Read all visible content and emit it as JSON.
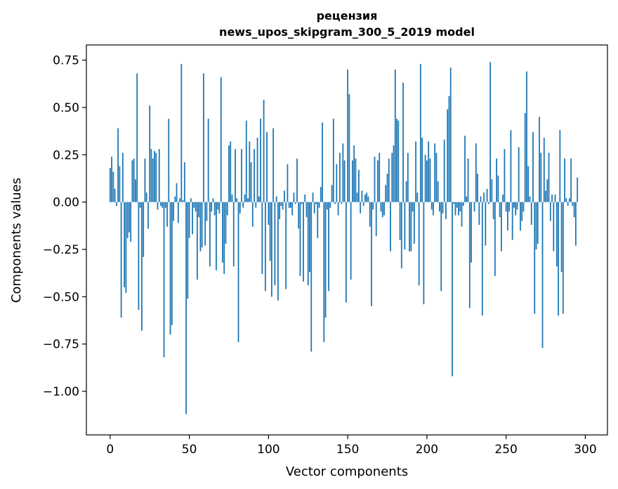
{
  "chart_data": {
    "type": "bar",
    "title": "рецензия",
    "subtitle": "news_upos_skipgram_300_5_2019 model",
    "xlabel": "Vector components",
    "ylabel": "Components values",
    "xlim": [
      -15,
      314
    ],
    "ylim": [
      -1.23,
      0.83
    ],
    "xticks": [
      0,
      50,
      100,
      150,
      200,
      250,
      300
    ],
    "xtick_labels": [
      "0",
      "50",
      "100",
      "150",
      "200",
      "250",
      "300"
    ],
    "yticks": [
      -1.0,
      -0.75,
      -0.5,
      -0.25,
      0.0,
      0.25,
      0.5,
      0.75
    ],
    "ytick_labels": [
      "−1.00",
      "−0.75",
      "−0.50",
      "−0.25",
      "0.00",
      "0.25",
      "0.50",
      "0.75"
    ],
    "grid": false,
    "bar_color": "#1f77b4",
    "values": [
      0.18,
      0.24,
      0.16,
      0.07,
      -0.02,
      0.39,
      0.19,
      -0.61,
      0.26,
      -0.45,
      -0.48,
      -0.19,
      -0.16,
      -0.21,
      0.22,
      0.23,
      0.12,
      0.68,
      -0.57,
      -0.03,
      -0.68,
      -0.29,
      0.23,
      0.05,
      -0.14,
      0.51,
      0.28,
      0.23,
      0.27,
      0.26,
      -0.04,
      0.28,
      -0.02,
      -0.03,
      -0.82,
      -0.03,
      -0.13,
      0.44,
      -0.7,
      -0.65,
      -0.1,
      0.03,
      0.1,
      -0.11,
      0.02,
      0.73,
      0.01,
      0.21,
      -1.12,
      -0.51,
      -0.19,
      0.02,
      -0.17,
      -0.03,
      -0.05,
      -0.41,
      -0.08,
      -0.26,
      -0.24,
      0.68,
      -0.23,
      -0.1,
      0.44,
      -0.34,
      -0.05,
      0.02,
      -0.07,
      -0.36,
      -0.04,
      -0.06,
      0.66,
      -0.32,
      -0.38,
      -0.22,
      -0.07,
      0.3,
      0.32,
      0.04,
      -0.34,
      0.28,
      0.02,
      -0.74,
      -0.06,
      0.28,
      -0.03,
      0.04,
      0.43,
      0.02,
      0.32,
      0.21,
      -0.13,
      0.28,
      -0.03,
      0.34,
      0.03,
      0.44,
      -0.38,
      0.54,
      -0.47,
      0.37,
      -0.12,
      -0.31,
      -0.5,
      0.39,
      -0.44,
      0.03,
      -0.52,
      -0.09,
      -0.02,
      -0.04,
      0.06,
      -0.46,
      0.2,
      -0.03,
      -0.03,
      -0.07,
      0.05,
      -0.01,
      0.23,
      -0.14,
      -0.39,
      -0.01,
      -0.42,
      0.04,
      -0.08,
      -0.44,
      -0.37,
      -0.79,
      0.05,
      -0.06,
      -0.01,
      -0.19,
      -0.03,
      0.08,
      0.42,
      -0.74,
      -0.61,
      -0.04,
      -0.47,
      -0.03,
      0.09,
      0.44,
      -0.01,
      0.2,
      -0.07,
      0.26,
      -0.01,
      0.31,
      0.22,
      -0.53,
      0.7,
      0.57,
      -0.41,
      0.22,
      0.3,
      0.23,
      0.05,
      0.17,
      -0.06,
      0.06,
      -0.02,
      0.04,
      0.05,
      0.03,
      -0.13,
      -0.55,
      -0.04,
      0.24,
      -0.18,
      0.22,
      0.26,
      -0.05,
      -0.08,
      -0.07,
      0.09,
      0.15,
      0.23,
      -0.26,
      0.26,
      0.3,
      0.7,
      0.44,
      0.43,
      -0.2,
      -0.35,
      0.63,
      -0.25,
      0.11,
      0.26,
      -0.26,
      -0.26,
      -0.05,
      -0.22,
      0.32,
      0.05,
      -0.44,
      0.73,
      0.34,
      -0.54,
      0.25,
      0.22,
      0.32,
      0.23,
      -0.04,
      -0.07,
      0.31,
      0.26,
      0.11,
      -0.05,
      -0.47,
      -0.06,
      0.33,
      -0.09,
      0.49,
      0.56,
      0.71,
      -0.92,
      -0.01,
      -0.07,
      -0.03,
      -0.07,
      -0.05,
      -0.13,
      -0.02,
      0.35,
      0.03,
      0.23,
      -0.56,
      -0.32,
      0.0,
      -0.05,
      0.31,
      0.15,
      -0.12,
      0.03,
      -0.6,
      0.05,
      -0.23,
      0.07,
      -0.01,
      0.74,
      0.12,
      -0.09,
      -0.39,
      0.23,
      0.14,
      -0.08,
      -0.26,
      0.04,
      0.28,
      -0.05,
      -0.15,
      -0.05,
      0.38,
      -0.2,
      -0.03,
      -0.07,
      -0.04,
      0.29,
      -0.15,
      -0.1,
      -0.05,
      0.47,
      0.69,
      0.19,
      0.03,
      -0.12,
      0.37,
      -0.59,
      -0.25,
      -0.22,
      0.45,
      0.26,
      -0.77,
      0.34,
      0.06,
      0.12,
      0.26,
      -0.1,
      0.04,
      -0.26,
      0.04,
      -0.34,
      -0.6,
      0.38,
      -0.37,
      -0.59,
      0.23,
      0.02,
      -0.02,
      0.02,
      0.23,
      -0.02,
      -0.08,
      -0.23,
      0.13
    ]
  }
}
